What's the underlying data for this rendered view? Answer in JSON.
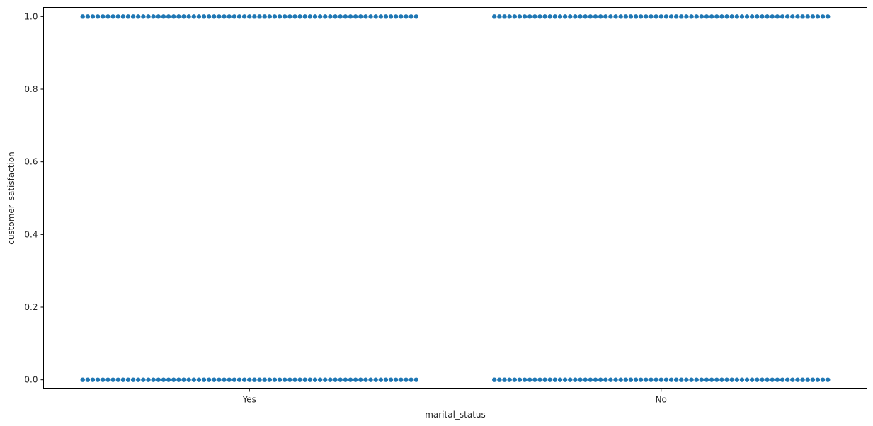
{
  "chart_data": {
    "type": "scatter",
    "subtype": "swarm",
    "title": "",
    "xlabel": "marital_status",
    "ylabel": "customer_satisfaction",
    "categories": [
      "Yes",
      "No"
    ],
    "ylim": [
      -0.025,
      1.025
    ],
    "yticks": [
      "0.0",
      "0.2",
      "0.4",
      "0.6",
      "0.8",
      "1.0"
    ],
    "grid": false,
    "marker_color": "#1f77b4",
    "series": [
      {
        "category": "Yes",
        "points": [
          {
            "y": 1.0,
            "approx_count": 67
          },
          {
            "y": 0.0,
            "approx_count": 67
          }
        ]
      },
      {
        "category": "No",
        "points": [
          {
            "y": 1.0,
            "approx_count": 67
          },
          {
            "y": 0.0,
            "approx_count": 67
          }
        ]
      }
    ]
  }
}
